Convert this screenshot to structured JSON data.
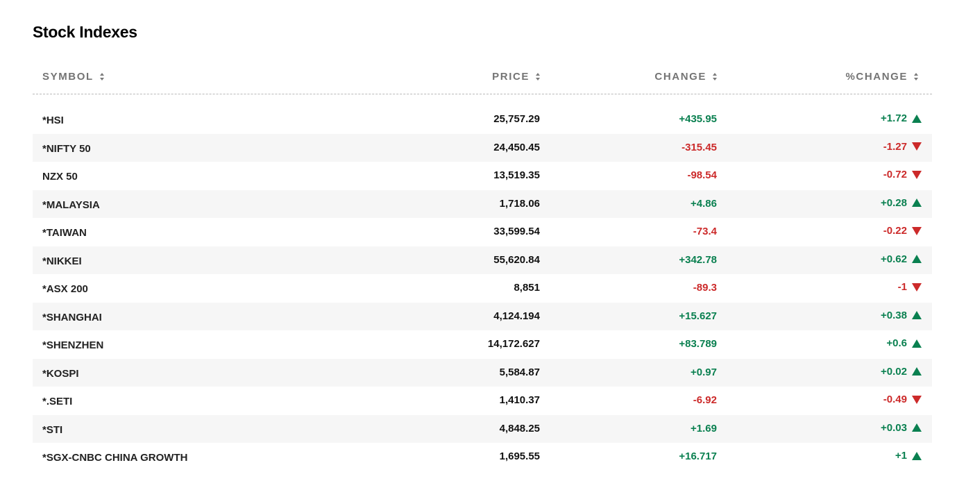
{
  "title": "Stock Indexes",
  "colors": {
    "positive": "#0a8050",
    "negative": "#cc2a2a",
    "header_text": "#747474",
    "row_alt_bg": "#f6f6f6"
  },
  "columns": {
    "symbol": "SYMBOL",
    "price": "PRICE",
    "change": "CHANGE",
    "pct_change": "%CHANGE"
  },
  "rows": [
    {
      "symbol": "*HSI",
      "price": "25,757.29",
      "change": "+435.95",
      "pct": "+1.72",
      "direction": "up"
    },
    {
      "symbol": "*NIFTY 50",
      "price": "24,450.45",
      "change": "-315.45",
      "pct": "-1.27",
      "direction": "down"
    },
    {
      "symbol": "NZX 50",
      "price": "13,519.35",
      "change": "-98.54",
      "pct": "-0.72",
      "direction": "down"
    },
    {
      "symbol": "*MALAYSIA",
      "price": "1,718.06",
      "change": "+4.86",
      "pct": "+0.28",
      "direction": "up"
    },
    {
      "symbol": "*TAIWAN",
      "price": "33,599.54",
      "change": "-73.4",
      "pct": "-0.22",
      "direction": "down"
    },
    {
      "symbol": "*NIKKEI",
      "price": "55,620.84",
      "change": "+342.78",
      "pct": "+0.62",
      "direction": "up"
    },
    {
      "symbol": "*ASX 200",
      "price": "8,851",
      "change": "-89.3",
      "pct": "-1",
      "direction": "down"
    },
    {
      "symbol": "*SHANGHAI",
      "price": "4,124.194",
      "change": "+15.627",
      "pct": "+0.38",
      "direction": "up"
    },
    {
      "symbol": "*SHENZHEN",
      "price": "14,172.627",
      "change": "+83.789",
      "pct": "+0.6",
      "direction": "up"
    },
    {
      "symbol": "*KOSPI",
      "price": "5,584.87",
      "change": "+0.97",
      "pct": "+0.02",
      "direction": "up"
    },
    {
      "symbol": "*.SETI",
      "price": "1,410.37",
      "change": "-6.92",
      "pct": "-0.49",
      "direction": "down"
    },
    {
      "symbol": "*STI",
      "price": "4,848.25",
      "change": "+1.69",
      "pct": "+0.03",
      "direction": "up"
    },
    {
      "symbol": "*SGX-CNBC CHINA GROWTH",
      "price": "1,695.55",
      "change": "+16.717",
      "pct": "+1",
      "direction": "up"
    }
  ]
}
